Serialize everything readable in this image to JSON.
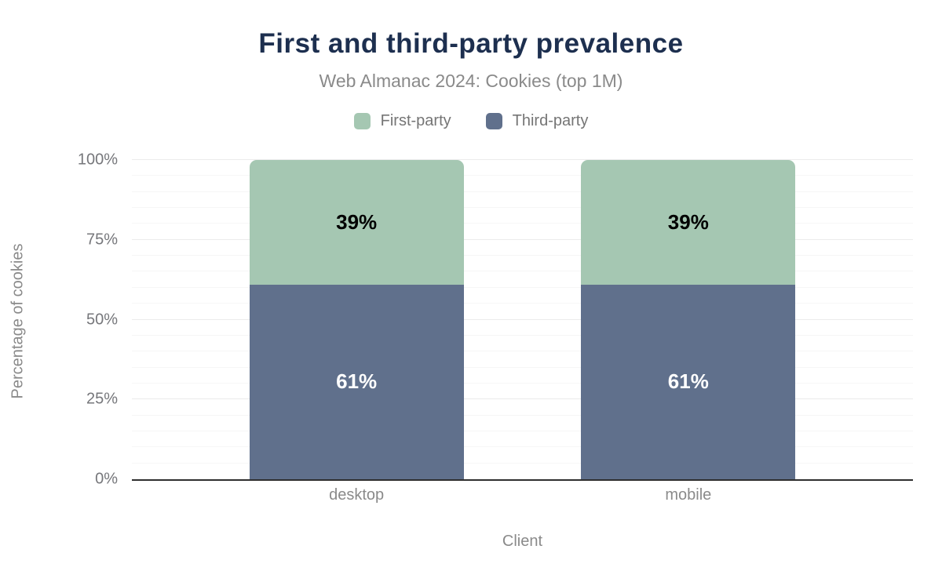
{
  "header": {
    "title": "First and third-party prevalence",
    "subtitle": "Web Almanac 2024: Cookies (top 1M)"
  },
  "legend": [
    {
      "label": "First-party",
      "color": "#a5c7b2"
    },
    {
      "label": "Third-party",
      "color": "#60708c"
    }
  ],
  "chart_data": {
    "type": "bar",
    "stacked": true,
    "title": "First and third-party prevalence",
    "subtitle": "Web Almanac 2024: Cookies (top 1M)",
    "xlabel": "Client",
    "ylabel": "Percentage of cookies",
    "categories": [
      "desktop",
      "mobile"
    ],
    "series": [
      {
        "name": "Third-party",
        "color": "#60708c",
        "values": [
          61,
          61
        ],
        "data_labels": [
          "61%",
          "61%"
        ],
        "label_color": "#ffffff",
        "stack_position": "bottom"
      },
      {
        "name": "First-party",
        "color": "#a5c7b2",
        "values": [
          39,
          39
        ],
        "data_labels": [
          "39%",
          "39%"
        ],
        "label_color": "#000000",
        "stack_position": "top"
      }
    ],
    "ylim": [
      0,
      100
    ],
    "y_ticks": [
      {
        "label": "0%",
        "value": 0
      },
      {
        "label": "25%",
        "value": 25
      },
      {
        "label": "50%",
        "value": 50
      },
      {
        "label": "75%",
        "value": 75
      },
      {
        "label": "100%",
        "value": 100
      }
    ],
    "grid": {
      "minor_step": 5,
      "major_step": 25,
      "minor_color": "#f6f6f6",
      "major_color": "#ebebeb"
    },
    "legend_position": "top",
    "axis_line_color": "#2f2f2f"
  }
}
